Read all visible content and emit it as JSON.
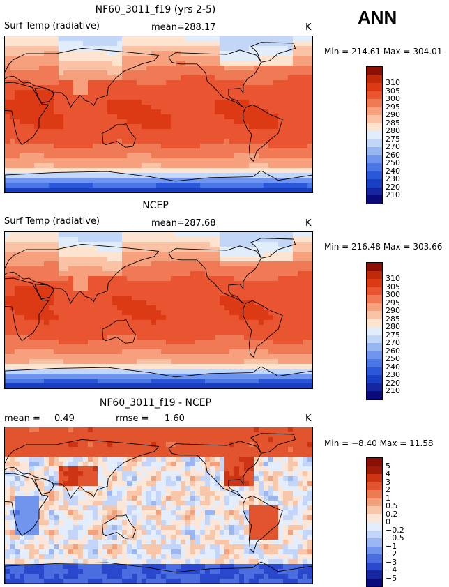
{
  "season": "ANN",
  "colors": {
    "abs_palette": [
      "#0a0a7a",
      "#1526a0",
      "#1a3fc2",
      "#2a58d8",
      "#4a76e6",
      "#6f95ee",
      "#98b6f2",
      "#c2d6f8",
      "#e2edfb",
      "#fde4d1",
      "#fbc3a5",
      "#f6a07e",
      "#f07a55",
      "#e85530",
      "#dc3a14",
      "#c02a0a",
      "#8a1006"
    ],
    "diff_palette": [
      "#0a0a7a",
      "#1526a0",
      "#2a48cc",
      "#4a6ee0",
      "#7194ec",
      "#9cb6f2",
      "#c3d5f8",
      "#e3edfb",
      "#fbe6d8",
      "#f8c7aa",
      "#f3a27e",
      "#ec7a52",
      "#e2542d",
      "#cc3414",
      "#a01a08",
      "#8a1006"
    ]
  },
  "chart_data": [
    {
      "type": "heatmap",
      "title": "NF60_3011_f19 (yrs 2-5)",
      "variable": "Surf Temp (radiative)",
      "mean_label": "mean=",
      "mean": "288.17",
      "units": "K",
      "min_label": "Min =",
      "min": "214.61",
      "max_label": "Max =",
      "max": "304.01",
      "levels": [
        "210",
        "220",
        "230",
        "240",
        "250",
        "260",
        "270",
        "275",
        "280",
        "285",
        "290",
        "295",
        "300",
        "305",
        "310"
      ],
      "x": "longitude 0E to 360E",
      "y": "latitude 90S to 90N"
    },
    {
      "type": "heatmap",
      "title": "NCEP",
      "variable": "Surf Temp (radiative)",
      "mean_label": "mean=",
      "mean": "287.68",
      "units": "K",
      "min_label": "Min =",
      "min": "216.48",
      "max_label": "Max =",
      "max": "303.66",
      "levels": [
        "210",
        "220",
        "230",
        "240",
        "250",
        "260",
        "270",
        "275",
        "280",
        "285",
        "290",
        "295",
        "300",
        "305",
        "310"
      ],
      "x": "longitude 0E to 360E",
      "y": "latitude 90S to 90N"
    },
    {
      "type": "heatmap",
      "title": "NF60_3011_f19 - NCEP",
      "mean_label": "mean =",
      "mean": "0.49",
      "rmse_label": "rmse =",
      "rmse": "1.60",
      "units": "K",
      "min_label": "Min =",
      "min": "−8.40",
      "max_label": "Max =",
      "max": "11.58",
      "levels": [
        "−5",
        "−4",
        "−3",
        "−2",
        "−1",
        "−0.5",
        "−0.2",
        "0",
        "0.2",
        "0.5",
        "1",
        "2",
        "3",
        "4",
        "5"
      ],
      "x": "longitude 0E to 360E",
      "y": "latitude 90S to 90N"
    }
  ]
}
